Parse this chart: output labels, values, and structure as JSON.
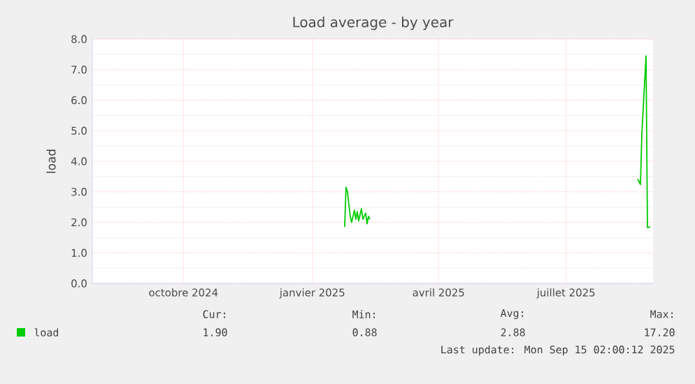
{
  "chart_data": {
    "type": "line",
    "title": "Load average - by year",
    "ylabel": "load",
    "x": [
      "2025-02-07",
      "2025-02-08",
      "2025-02-09",
      "2025-02-11",
      "2025-02-12",
      "2025-02-14",
      "2025-02-15",
      "2025-02-16",
      "2025-02-17",
      "2025-02-19",
      "2025-02-20",
      "2025-02-22",
      "2025-02-23",
      "2025-02-24",
      "2025-02-25",
      "2025-03-01",
      "2025-09-04",
      "2025-09-06",
      "2025-09-07",
      "2025-09-10",
      "2025-09-11",
      "2025-09-13"
    ],
    "series": [
      {
        "name": "load",
        "color": "#00cc00",
        "values": [
          1.85,
          3.15,
          3.0,
          2.2,
          2.0,
          2.4,
          2.1,
          2.35,
          2.05,
          2.45,
          2.1,
          2.3,
          1.95,
          2.2,
          2.1,
          null,
          3.42,
          3.24,
          4.9,
          7.45,
          1.83,
          1.85
        ]
      }
    ],
    "xlim": [
      "2024-08-11",
      "2025-09-15"
    ],
    "xticks": [
      {
        "value": "2024-10-15",
        "label": "octobre 2024"
      },
      {
        "value": "2025-01-15",
        "label": "janvier 2025"
      },
      {
        "value": "2025-04-15",
        "label": "avril 2025"
      },
      {
        "value": "2025-07-15",
        "label": "juillet 2025"
      }
    ],
    "ylim": [
      0,
      8
    ],
    "yticks": [
      {
        "value": 0,
        "label": "0.0"
      },
      {
        "value": 1,
        "label": "1.0"
      },
      {
        "value": 2,
        "label": "2.0"
      },
      {
        "value": 3,
        "label": "3.0"
      },
      {
        "value": 4,
        "label": "4.0"
      },
      {
        "value": 5,
        "label": "5.0"
      },
      {
        "value": 6,
        "label": "6.0"
      },
      {
        "value": 7,
        "label": "7.0"
      },
      {
        "value": 8,
        "label": "8.0"
      }
    ],
    "grid": true,
    "legend": "bottom left",
    "marker": "none",
    "line_style": "solid",
    "annotations": [
      "Cur:",
      "1.90",
      "Min:",
      "0.88",
      "Avg:",
      "2.88",
      "Max:",
      "17.20",
      "Last update: Mon Sep 15 02:00:12 2025"
    ]
  }
}
